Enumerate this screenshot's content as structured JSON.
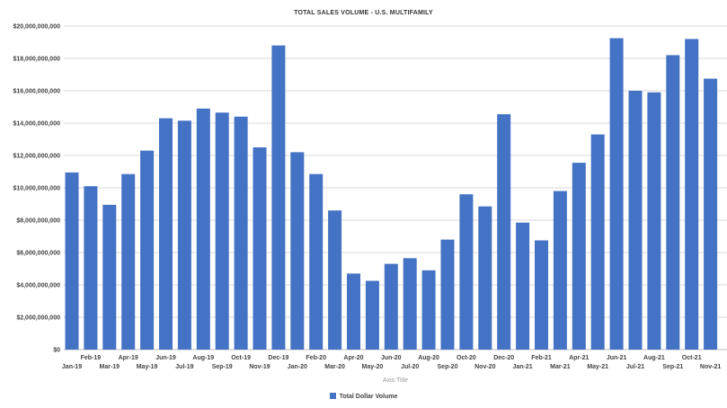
{
  "chart_data": {
    "type": "bar",
    "title": "TOTAL SALES VOLUME - U.S. MULTIFAMILY",
    "xlabel": "Axis Title",
    "ylabel": "",
    "ylim": [
      0,
      20000000
    ],
    "y_ticks": [
      "$0",
      "$2,000,000,000",
      "$4,000,000,000",
      "$6,000,000,000",
      "$8,000,000,000",
      "$10,000,000,000",
      "$12,000,000,000",
      "$14,000,000,000",
      "$16,000,000,000",
      "$18,000,000,000",
      "$20,000,000,000"
    ],
    "categories": [
      "Jan-19",
      "Feb-19",
      "Mar-19",
      "Apr-19",
      "May-19",
      "Jun-19",
      "Jul-19",
      "Aug-19",
      "Sep-19",
      "Oct-19",
      "Nov-19",
      "Dec-19",
      "Jan-20",
      "Feb-20",
      "Mar-20",
      "Apr-20",
      "May-20",
      "Jun-20",
      "Jul-20",
      "Aug-20",
      "Sep-20",
      "Oct-20",
      "Nov-20",
      "Dec-20",
      "Jan-21",
      "Feb-21",
      "Mar-21",
      "Apr-21",
      "May-21",
      "Jun-21",
      "Jul-21",
      "Aug-21",
      "Sep-21",
      "Oct-21",
      "Nov-21"
    ],
    "series": [
      {
        "name": "Total Dollar Volume",
        "color": "#4472C4",
        "values": [
          10950000,
          10100000,
          8950000,
          10850000,
          12300000,
          14300000,
          14150000,
          14900000,
          14650000,
          14400000,
          12500000,
          18800000,
          12200000,
          10850000,
          8600000,
          4700000,
          4250000,
          5300000,
          5650000,
          4900000,
          6800000,
          9600000,
          8850000,
          14550000,
          7850000,
          6750000,
          9800000,
          11550000,
          13300000,
          19250000,
          16000000,
          15900000,
          18200000,
          19200000,
          16750000
        ]
      }
    ],
    "grid": true,
    "legend_position": "bottom"
  }
}
